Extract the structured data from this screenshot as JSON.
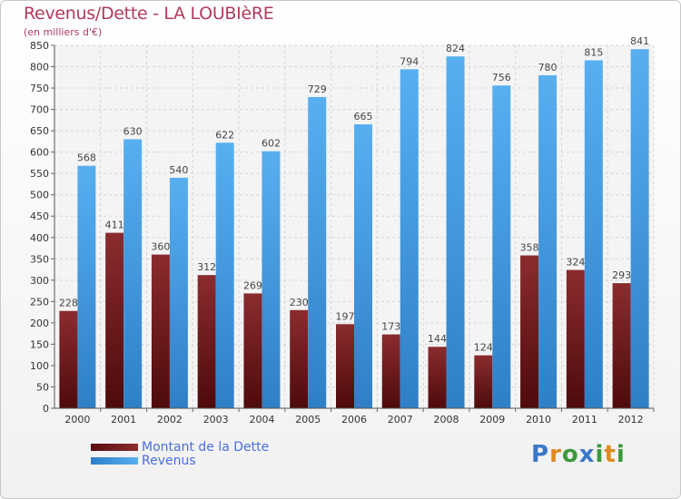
{
  "chart_data": {
    "type": "bar",
    "title": "Revenus/Dette - LA LOUBIèRE",
    "subtitle": "(en milliers d'€)",
    "categories": [
      "2000",
      "2001",
      "2002",
      "2003",
      "2004",
      "2005",
      "2006",
      "2007",
      "2008",
      "2009",
      "2010",
      "2011",
      "2012"
    ],
    "series": [
      {
        "name": "Montant de la Dette",
        "color": "#7a1e22",
        "values": [
          228,
          411,
          360,
          312,
          269,
          230,
          197,
          173,
          144,
          124,
          358,
          324,
          293
        ]
      },
      {
        "name": "Revenus",
        "color": "#4aa3e6",
        "values": [
          568,
          630,
          540,
          622,
          602,
          729,
          665,
          794,
          824,
          756,
          780,
          815,
          841
        ]
      }
    ],
    "ylim": [
      0,
      850
    ],
    "ytick_step": 50,
    "grid": true,
    "legend_position": "bottom-left"
  },
  "brand": {
    "text": "Proxiti",
    "letters": [
      {
        "ch": "P",
        "color": "#3a78c8"
      },
      {
        "ch": "r",
        "color": "#e08a1e"
      },
      {
        "ch": "o",
        "color": "#3a9a3a"
      },
      {
        "ch": "x",
        "color": "#3a78c8"
      },
      {
        "ch": "i",
        "color": "#3a9a3a"
      },
      {
        "ch": "t",
        "color": "#e08a1e"
      },
      {
        "ch": "i",
        "color": "#3a9a3a"
      }
    ]
  }
}
